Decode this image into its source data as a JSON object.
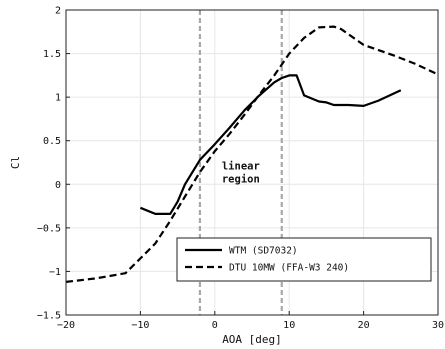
{
  "chart_data": {
    "type": "line",
    "xlabel": "AOA [deg]",
    "ylabel": "Cl",
    "xlim": [
      -20,
      30
    ],
    "ylim": [
      -1.5,
      2
    ],
    "xticks": [
      -20,
      -10,
      0,
      10,
      20,
      30
    ],
    "xtick_labels": [
      "−20",
      "−10",
      "0",
      "10",
      "20",
      "30"
    ],
    "yticks": [
      -1.5,
      -1,
      -0.5,
      0,
      0.5,
      1,
      1.5,
      2
    ],
    "ytick_labels": [
      "−1.5",
      "−1",
      "−0.5",
      "0",
      "0.5",
      "1",
      "1.5",
      "2"
    ],
    "grid": true,
    "legend": "lower-right",
    "vertical_lines": [
      -2,
      9
    ],
    "annotation": {
      "line1": "linear",
      "line2": "region",
      "x": 3.5,
      "y": 0.1
    },
    "series": [
      {
        "name": "WTM (SD7032)",
        "style": "solid",
        "color": "#000000",
        "x": [
          -10,
          -8,
          -6,
          -5,
          -4,
          -2,
          0,
          2,
          4,
          6,
          8,
          9,
          10,
          11,
          12,
          14,
          15,
          16,
          18,
          20,
          22,
          25
        ],
        "y": [
          -0.27,
          -0.34,
          -0.34,
          -0.2,
          0.0,
          0.28,
          0.46,
          0.65,
          0.85,
          1.02,
          1.17,
          1.22,
          1.25,
          1.25,
          1.02,
          0.95,
          0.94,
          0.91,
          0.91,
          0.9,
          0.96,
          1.08
        ]
      },
      {
        "name": "DTU 10MW (FFA-W3 240)",
        "style": "dashed",
        "color": "#000000",
        "x": [
          -20,
          -16,
          -12,
          -10,
          -8,
          -6,
          -4,
          -2,
          0,
          2,
          4,
          6,
          8,
          10,
          12,
          14,
          16,
          17,
          18,
          20,
          24,
          27,
          30
        ],
        "y": [
          -1.12,
          -1.08,
          -1.02,
          -0.85,
          -0.68,
          -0.42,
          -0.14,
          0.14,
          0.38,
          0.58,
          0.8,
          1.03,
          1.25,
          1.5,
          1.68,
          1.8,
          1.81,
          1.78,
          1.72,
          1.6,
          1.48,
          1.38,
          1.26
        ]
      }
    ]
  }
}
